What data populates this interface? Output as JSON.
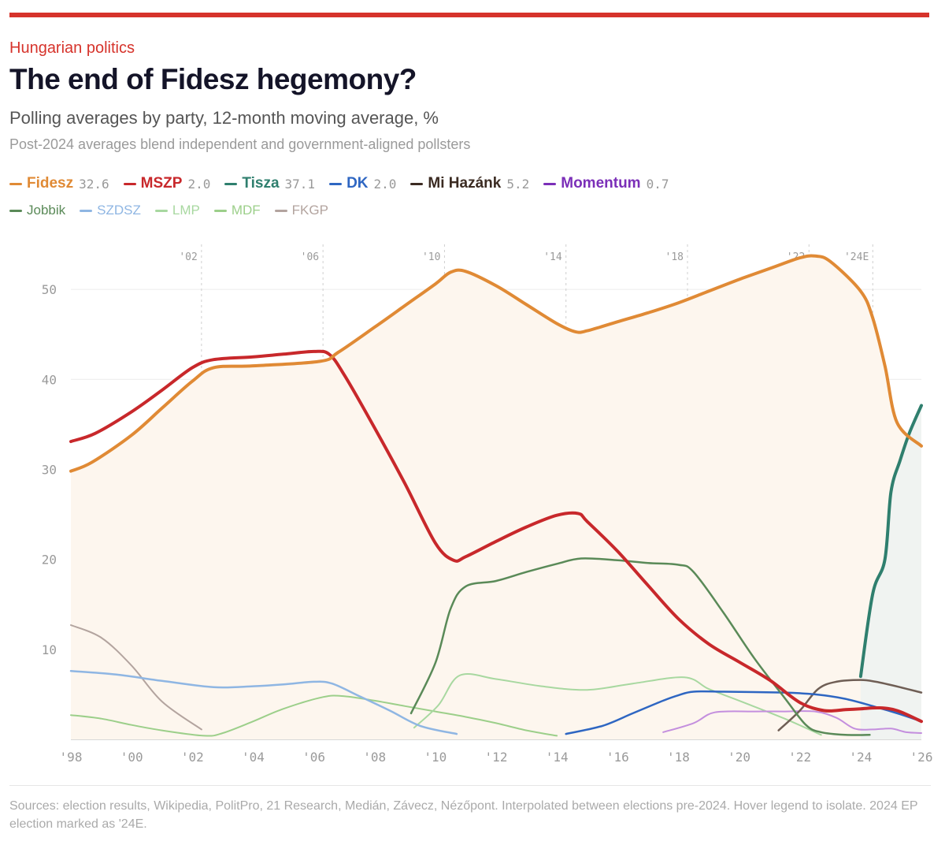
{
  "header": {
    "kicker": "Hungarian politics",
    "title": "The end of Fidesz hegemony?",
    "subtitle": "Polling averages by party, 12-month moving average, %",
    "note": "Post-2024 averages blend independent and government-aligned pollsters"
  },
  "legend": {
    "row1": [
      {
        "name": "Fidesz",
        "value": "32.6",
        "color": "#e08a35"
      },
      {
        "name": "MSZP",
        "value": "2.0",
        "color": "#c8282b"
      },
      {
        "name": "Tisza",
        "value": "37.1",
        "color": "#2f7f6e"
      },
      {
        "name": "DK",
        "value": "2.0",
        "color": "#2e66c2"
      },
      {
        "name": "Mi Hazánk",
        "value": "5.2",
        "color": "#3b2b22"
      },
      {
        "name": "Momentum",
        "value": "0.7",
        "color": "#7b2fb8"
      }
    ],
    "row2": [
      {
        "name": "Jobbik",
        "color": "#5a8a58"
      },
      {
        "name": "SZDSZ",
        "color": "#8fb6e3"
      },
      {
        "name": "LMP",
        "color": "#a8d8a0"
      },
      {
        "name": "MDF",
        "color": "#9ccf8a"
      },
      {
        "name": "FKGP",
        "color": "#b3a49f"
      }
    ]
  },
  "footer": {
    "sources": "Sources: election results, Wikipedia, PolitPro, 21 Research, Medián, Závecz, Nézőpont. Interpolated between elections pre-2024. Hover legend to isolate. 2024 EP election marked as '24E."
  },
  "chart_data": {
    "type": "line",
    "xlabel": "",
    "ylabel": "",
    "xlim": [
      1998,
      2026
    ],
    "ylim": [
      0,
      55
    ],
    "yticks": [
      10,
      20,
      30,
      40,
      50
    ],
    "ytick_labels": [
      "10",
      "20",
      "30",
      "40",
      "50"
    ],
    "xticks": [
      1998,
      2000,
      2002,
      2004,
      2006,
      2008,
      2010,
      2012,
      2014,
      2016,
      2018,
      2020,
      2022,
      2024,
      2026
    ],
    "xtick_labels": [
      "'98",
      "'00",
      "'02",
      "'04",
      "'06",
      "'08",
      "'10",
      "'12",
      "'14",
      "'16",
      "'18",
      "'20",
      "'22",
      "'24",
      "'26"
    ],
    "elections": [
      {
        "x": 2002.3,
        "label": "'02"
      },
      {
        "x": 2006.3,
        "label": "'06"
      },
      {
        "x": 2010.3,
        "label": "'10"
      },
      {
        "x": 2014.3,
        "label": "'14"
      },
      {
        "x": 2018.3,
        "label": "'18"
      },
      {
        "x": 2022.3,
        "label": "'22"
      },
      {
        "x": 2024.4,
        "label": "'24E"
      }
    ],
    "series": [
      {
        "name": "Fidesz",
        "color": "#e08a35",
        "width": 4,
        "area": true,
        "x": [
          1998,
          1998.7,
          2000,
          2001,
          2002,
          2002.7,
          2004,
          2006.2,
          2006.8,
          2008,
          2009,
          2010,
          2010.5,
          2011,
          2012,
          2013,
          2014,
          2014.6,
          2015,
          2016,
          2017,
          2018,
          2019,
          2020,
          2021,
          2022,
          2022.5,
          2023,
          2024,
          2024.4,
          2024.8,
          2025.2,
          2026
        ],
        "values": [
          29.8,
          30.8,
          33.8,
          36.8,
          39.8,
          41.3,
          41.5,
          42.0,
          43.0,
          45.8,
          48.2,
          50.6,
          51.9,
          52.0,
          50.4,
          48.3,
          46.2,
          45.3,
          45.4,
          46.4,
          47.4,
          48.5,
          49.8,
          51.1,
          52.3,
          53.5,
          53.7,
          53.1,
          49.8,
          46.8,
          41.5,
          35.2,
          32.6
        ]
      },
      {
        "name": "MSZP",
        "color": "#c8282b",
        "width": 4,
        "x": [
          1998,
          1998.8,
          2000,
          2001,
          2002,
          2002.7,
          2004,
          2005,
          2006,
          2006.5,
          2007,
          2008,
          2009,
          2010,
          2010.6,
          2011,
          2012,
          2013,
          2014,
          2014.7,
          2015,
          2016,
          2017,
          2018,
          2019,
          2020,
          2021,
          2022,
          2022.8,
          2023.5,
          2024,
          2024.6,
          2025.2,
          2026
        ],
        "values": [
          33.1,
          34.0,
          36.4,
          38.8,
          41.3,
          42.2,
          42.5,
          42.8,
          43.1,
          42.8,
          40.5,
          34.6,
          28.4,
          21.8,
          19.9,
          20.3,
          22.0,
          23.6,
          24.9,
          25.1,
          24.2,
          20.9,
          17.1,
          13.4,
          10.6,
          8.6,
          6.6,
          4.1,
          3.2,
          3.3,
          3.4,
          3.5,
          3.2,
          2.0
        ]
      },
      {
        "name": "Tisza",
        "color": "#2f7f6e",
        "width": 4,
        "x": [
          2024,
          2024.4,
          2024.8,
          2025.0,
          2025.3,
          2025.6,
          2026
        ],
        "values": [
          7.0,
          16.2,
          20.0,
          27.5,
          31.0,
          34.0,
          37.1
        ]
      },
      {
        "name": "DK",
        "color": "#2e66c2",
        "width": 2.5,
        "x": [
          2014.3,
          2015.5,
          2016.5,
          2017.5,
          2018,
          2018.5,
          2019.5,
          2021.5,
          2022.5,
          2023.5,
          2024.5,
          2025.3,
          2026
        ],
        "values": [
          0.6,
          1.5,
          2.9,
          4.3,
          4.9,
          5.3,
          5.3,
          5.2,
          5.0,
          4.5,
          3.6,
          2.8,
          2.0
        ]
      },
      {
        "name": "Mi Hazánk",
        "color": "#6f5e55",
        "width": 2.5,
        "x": [
          2021.3,
          2022,
          2022.6,
          2023.2,
          2024,
          2024.5,
          2025.3,
          2026
        ],
        "values": [
          1.0,
          3.2,
          5.6,
          6.4,
          6.6,
          6.4,
          5.8,
          5.2
        ]
      },
      {
        "name": "Momentum",
        "color": "#c48fde",
        "width": 2,
        "x": [
          2017.5,
          2018.5,
          2019.2,
          2020.5,
          2021.5,
          2022.5,
          2023.2,
          2023.8,
          2024.4,
          2025,
          2025.5,
          2026
        ],
        "values": [
          0.8,
          1.8,
          3.0,
          3.1,
          3.1,
          3.1,
          2.4,
          1.2,
          1.1,
          1.2,
          0.8,
          0.7
        ]
      },
      {
        "name": "Jobbik",
        "color": "#5a8a58",
        "width": 2.5,
        "x": [
          2009.2,
          2010,
          2010.5,
          2011,
          2012,
          2013,
          2014,
          2014.8,
          2016,
          2017,
          2018,
          2018.5,
          2019.5,
          2020.5,
          2021.5,
          2022.2,
          2022.7,
          2023.5,
          2024.3
        ],
        "values": [
          2.9,
          8.5,
          14.5,
          17.0,
          17.6,
          18.6,
          19.5,
          20.1,
          19.9,
          19.6,
          19.4,
          18.6,
          14.0,
          9.0,
          4.6,
          1.6,
          0.8,
          0.5,
          0.5
        ]
      },
      {
        "name": "SZDSZ",
        "color": "#8fb6e3",
        "width": 2.5,
        "x": [
          1998,
          1999.5,
          2001,
          2002.7,
          2004,
          2005,
          2006,
          2006.6,
          2007.5,
          2008.5,
          2009.5,
          2010.7
        ],
        "values": [
          7.6,
          7.2,
          6.5,
          5.8,
          5.9,
          6.1,
          6.4,
          6.2,
          4.8,
          3.2,
          1.5,
          0.6
        ]
      },
      {
        "name": "LMP",
        "color": "#a8d8a0",
        "width": 2,
        "x": [
          2009.3,
          2010.1,
          2010.8,
          2012,
          2013.5,
          2015,
          2016.5,
          2018.2,
          2019,
          2020,
          2021.5,
          2022.7
        ],
        "values": [
          1.3,
          3.8,
          7.1,
          6.7,
          5.9,
          5.5,
          6.2,
          6.9,
          5.6,
          4.3,
          2.3,
          0.5
        ]
      },
      {
        "name": "MDF",
        "color": "#9ccf8a",
        "width": 2,
        "x": [
          1998,
          1999,
          2000,
          2001,
          2002.4,
          2003,
          2004,
          2005,
          2006.3,
          2007,
          2008,
          2009,
          2010,
          2011,
          2012,
          2013,
          2014
        ],
        "values": [
          2.7,
          2.3,
          1.6,
          1.0,
          0.4,
          0.7,
          2.0,
          3.4,
          4.7,
          4.8,
          4.3,
          3.7,
          3.1,
          2.5,
          1.8,
          1.0,
          0.4
        ]
      },
      {
        "name": "FKGP",
        "color": "#b3a49f",
        "width": 2,
        "x": [
          1998,
          1999,
          2000,
          2001,
          2002.3
        ],
        "values": [
          12.7,
          11.3,
          8.2,
          4.2,
          1.1
        ]
      }
    ]
  }
}
